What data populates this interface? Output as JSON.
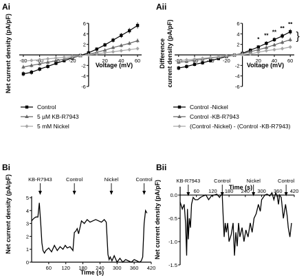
{
  "panel_labels": [
    "Ai",
    "Aii",
    "Bi",
    "Bii"
  ],
  "colors": {
    "control": "#000000",
    "kb": "#666666",
    "nickel": "#a6a6a6"
  },
  "chart_data": [
    {
      "id": "Ai",
      "type": "line",
      "title": "",
      "xlabel": "Voltage (mV)",
      "ylabel": "Net current density (pA/pF)",
      "xlim": [
        -85,
        65
      ],
      "ylim": [
        -6,
        6
      ],
      "xticks": [
        -80,
        -60,
        -40,
        -20,
        20,
        40,
        60
      ],
      "yticks": [
        -6,
        -4,
        -2,
        2,
        4,
        6
      ],
      "x": [
        -80,
        -70,
        -60,
        -50,
        -40,
        -30,
        -20,
        -10,
        0,
        10,
        20,
        30,
        40,
        50,
        60
      ],
      "series": [
        {
          "name": "Control",
          "color": "#000000",
          "marker": "square",
          "values": [
            -3.6,
            -3.3,
            -2.7,
            -2.2,
            -1.6,
            -1.1,
            -0.6,
            -0.1,
            0.4,
            1.1,
            1.9,
            2.8,
            3.7,
            4.6,
            5.6
          ]
        },
        {
          "name": "5 µM KB-R7943",
          "color": "#666666",
          "marker": "triangle",
          "values": [
            -2.3,
            -2.0,
            -1.7,
            -1.4,
            -1.1,
            -0.8,
            -0.5,
            -0.2,
            0.1,
            0.5,
            0.9,
            1.4,
            1.8,
            2.2,
            2.7
          ]
        },
        {
          "name": "5 mM Nickel",
          "color": "#a6a6a6",
          "marker": "diamond",
          "values": [
            -1.2,
            -1.05,
            -0.9,
            -0.75,
            -0.6,
            -0.45,
            -0.3,
            -0.15,
            0.0,
            0.2,
            0.4,
            0.6,
            0.8,
            1.0,
            1.2
          ]
        }
      ],
      "legend": "bottom"
    },
    {
      "id": "Aii",
      "type": "line",
      "title": "",
      "xlabel": "Voltage (mV)",
      "ylabel": "Difference current density (pA/pF)",
      "xlim": [
        -85,
        65
      ],
      "ylim": [
        -6,
        6
      ],
      "xticks": [
        -80,
        -60,
        -40,
        -20,
        20,
        40,
        60
      ],
      "yticks": [
        -6,
        -4,
        -2,
        2,
        4,
        6
      ],
      "x": [
        -80,
        -70,
        -60,
        -50,
        -40,
        -30,
        -20,
        -10,
        0,
        10,
        20,
        30,
        40,
        50,
        60
      ],
      "series": [
        {
          "name": "Control -Nickel",
          "color": "#000000",
          "marker": "square",
          "values": [
            -2.5,
            -2.2,
            -1.8,
            -1.5,
            -1.1,
            -0.7,
            -0.3,
            -0.05,
            0.3,
            0.9,
            1.5,
            2.2,
            2.9,
            3.6,
            4.4
          ]
        },
        {
          "name": "Control -KB-R7943",
          "color": "#666666",
          "marker": "triangle",
          "values": [
            -1.4,
            -1.25,
            -1.0,
            -0.85,
            -0.6,
            -0.4,
            -0.2,
            0.0,
            0.25,
            0.6,
            1.0,
            1.4,
            1.9,
            2.4,
            2.9
          ]
        },
        {
          "name": "(Control -Nickel) - (Control -KB-R7943)",
          "color": "#a6a6a6",
          "marker": "diamond",
          "values": [
            -1.1,
            -0.95,
            -0.8,
            -0.65,
            -0.5,
            -0.35,
            -0.2,
            -0.05,
            0.05,
            0.2,
            0.5,
            0.8,
            1.0,
            1.2,
            1.5
          ]
        }
      ],
      "annotations": [
        {
          "text": "*",
          "x": 20
        },
        {
          "text": "**",
          "x": 30
        },
        {
          "text": "**",
          "x": 40
        },
        {
          "text": "**",
          "x": 50
        },
        {
          "text": "**",
          "x": 60
        },
        {
          "text": "}",
          "x": 65
        }
      ],
      "legend": "bottom"
    },
    {
      "id": "Bi",
      "type": "line",
      "title": "",
      "xlabel": "Time (s)",
      "ylabel": "Net current density (pA/pF)",
      "xlim": [
        0,
        420
      ],
      "ylim": [
        0,
        5
      ],
      "xticks": [
        60,
        120,
        180,
        240,
        300,
        360,
        420
      ],
      "yticks": [
        0,
        1,
        2,
        3,
        4,
        5
      ],
      "events": [
        {
          "label": "KB-R7943",
          "x": 30
        },
        {
          "label": "Control",
          "x": 150
        },
        {
          "label": "Nickel",
          "x": 280
        },
        {
          "label": "Control",
          "x": 395
        }
      ],
      "series": [
        {
          "name": "",
          "color": "#000000",
          "x": [
            0,
            8,
            15,
            22,
            27,
            32,
            36,
            40,
            45,
            50,
            60,
            70,
            80,
            90,
            100,
            110,
            118,
            125,
            135,
            145,
            150,
            155,
            160,
            165,
            175,
            185,
            195,
            205,
            215,
            225,
            235,
            245,
            255,
            262,
            268,
            272,
            276,
            282,
            290,
            300,
            310,
            320,
            330,
            340,
            350,
            360,
            370,
            378,
            385,
            390,
            395,
            400,
            405
          ],
          "values": [
            3.2,
            3.4,
            3.5,
            3.5,
            4.6,
            3.0,
            1.5,
            0.9,
            0.7,
            0.9,
            1.1,
            0.8,
            1.3,
            0.9,
            1.2,
            1.0,
            1.3,
            1.1,
            1.2,
            0.9,
            2.3,
            2.4,
            2.6,
            2.2,
            3.2,
            3.0,
            3.3,
            3.1,
            3.2,
            3.3,
            3.2,
            3.1,
            3.3,
            3.1,
            0.6,
            0.2,
            0.4,
            0.1,
            0.5,
            0.0,
            0.3,
            0.0,
            0.2,
            0.1,
            0.0,
            0.2,
            0.1,
            0.0,
            0.1,
            0.4,
            3.0,
            4.0,
            3.8
          ]
        }
      ]
    },
    {
      "id": "Bii",
      "type": "line",
      "title": "",
      "xlabel": "Time (s)",
      "ylabel": "Net current density (pA/pF)",
      "xlim": [
        0,
        420
      ],
      "ylim": [
        -1.5,
        0.15
      ],
      "xaxis_position": "top",
      "xticks": [
        60,
        120,
        180,
        240,
        300,
        360,
        420
      ],
      "yticks": [
        -1.5,
        -1.0,
        -0.5,
        0.0
      ],
      "events": [
        {
          "label": "KB-R7943",
          "x": 30
        },
        {
          "label": "Control",
          "x": 155
        },
        {
          "label": "Nickel",
          "x": 270
        },
        {
          "label": "Control",
          "x": 390
        }
      ],
      "series": [
        {
          "name": "",
          "color": "#000000",
          "x": [
            0,
            8,
            15,
            20,
            24,
            27,
            30,
            34,
            38,
            42,
            48,
            55,
            65,
            75,
            85,
            95,
            105,
            115,
            125,
            135,
            145,
            150,
            155,
            158,
            162,
            166,
            170,
            175,
            180,
            188,
            195,
            200,
            205,
            210,
            215,
            220,
            228,
            235,
            242,
            250,
            258,
            265,
            272,
            280,
            288,
            295,
            300,
            306,
            312,
            320,
            330,
            338,
            345,
            352,
            358,
            362,
            366,
            372,
            380,
            388,
            394,
            398,
            404,
            410
          ],
          "values": [
            -0.15,
            -0.3,
            -0.2,
            -0.6,
            -1.3,
            -0.3,
            -0.95,
            -0.5,
            -0.7,
            -0.2,
            -0.05,
            -0.1,
            -0.1,
            -0.05,
            -0.02,
            0.0,
            -0.1,
            -0.02,
            0.0,
            0.02,
            -0.05,
            0.0,
            0.0,
            -0.4,
            -0.9,
            -0.6,
            -0.8,
            -0.6,
            -1.0,
            -0.85,
            -0.6,
            -1.3,
            -0.8,
            -1.1,
            -0.6,
            -0.9,
            -0.7,
            -1.0,
            -0.75,
            -0.9,
            -0.6,
            -0.8,
            -0.5,
            -0.4,
            -0.2,
            -0.35,
            -0.1,
            -0.05,
            0.0,
            0.02,
            -0.02,
            0.05,
            -0.1,
            0.05,
            -0.05,
            -0.2,
            0.0,
            -0.05,
            -0.5,
            -0.2,
            -0.45,
            -0.7,
            -0.9,
            -0.6
          ]
        }
      ]
    }
  ]
}
